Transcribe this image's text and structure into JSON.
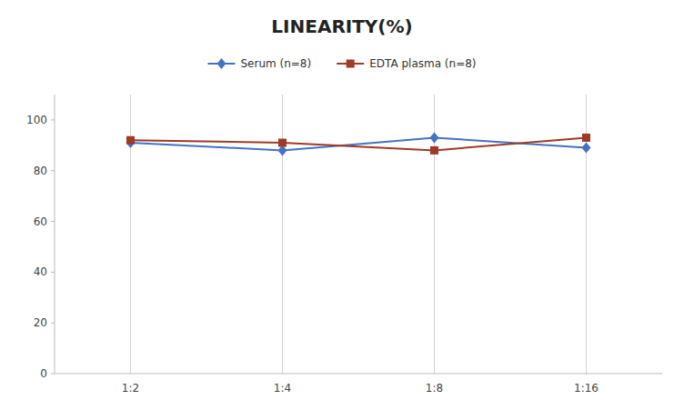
{
  "chart_data": {
    "type": "line",
    "title": "LINEARITY(%)",
    "categories": [
      "1:2",
      "1:4",
      "1:8",
      "1:16"
    ],
    "series": [
      {
        "name": "Serum (n=8)",
        "color": "#4472c4",
        "marker": "diamond",
        "values": [
          91,
          88,
          93,
          89
        ]
      },
      {
        "name": "EDTA plasma (n=8)",
        "color": "#9e3a26",
        "marker": "square",
        "values": [
          92,
          91,
          88,
          93
        ]
      }
    ],
    "ylim": [
      0,
      110
    ],
    "yticks": [
      0,
      20,
      40,
      60,
      80,
      100
    ],
    "grid": "x",
    "legend": "top"
  }
}
